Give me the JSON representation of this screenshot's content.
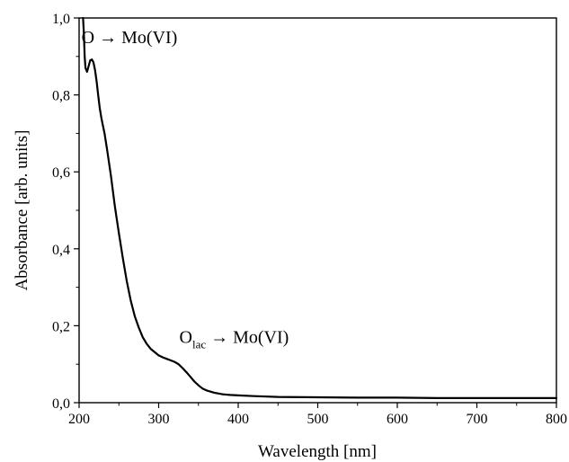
{
  "chart_data": {
    "type": "line",
    "title": "",
    "xlabel": "Wavelength [nm]",
    "ylabel": "Absorbance [arb. units]",
    "xlim": [
      200,
      800
    ],
    "ylim": [
      0.0,
      1.0
    ],
    "x_ticks": [
      200,
      300,
      400,
      500,
      600,
      700,
      800
    ],
    "y_ticks": [
      0.0,
      0.2,
      0.4,
      0.6,
      0.8,
      1.0
    ],
    "x_tick_labels": [
      "200",
      "300",
      "400",
      "500",
      "600",
      "700",
      "800"
    ],
    "y_tick_labels": [
      "0,0",
      "0,2",
      "0,4",
      "0,6",
      "0,8",
      "1,0"
    ],
    "grid": false,
    "series": [
      {
        "color": "#000000",
        "x": [
          205,
          206,
          207,
          208,
          210,
          212,
          214,
          216,
          218,
          220,
          222,
          224,
          226,
          228,
          230,
          232,
          235,
          240,
          245,
          250,
          255,
          260,
          265,
          270,
          275,
          280,
          285,
          290,
          300,
          305,
          310,
          315,
          320,
          325,
          330,
          335,
          340,
          345,
          350,
          355,
          360,
          370,
          380,
          390,
          400,
          420,
          450,
          500,
          550,
          600,
          650,
          700,
          750,
          800
        ],
        "y": [
          1.0,
          0.96,
          0.9,
          0.87,
          0.86,
          0.875,
          0.89,
          0.892,
          0.885,
          0.865,
          0.835,
          0.8,
          0.765,
          0.74,
          0.72,
          0.7,
          0.66,
          0.59,
          0.51,
          0.44,
          0.375,
          0.315,
          0.265,
          0.225,
          0.195,
          0.17,
          0.153,
          0.14,
          0.123,
          0.118,
          0.114,
          0.11,
          0.106,
          0.1,
          0.09,
          0.079,
          0.067,
          0.055,
          0.045,
          0.037,
          0.032,
          0.026,
          0.022,
          0.02,
          0.019,
          0.017,
          0.015,
          0.014,
          0.013,
          0.013,
          0.012,
          0.012,
          0.012,
          0.012
        ]
      }
    ],
    "annotations": [
      {
        "text": "O → Mo(VI)",
        "at_x": 203,
        "at_y": 0.935
      },
      {
        "main": "O",
        "sub": "lac",
        "rest": " → Mo(VI)",
        "at_x": 326,
        "at_y": 0.155
      }
    ]
  }
}
